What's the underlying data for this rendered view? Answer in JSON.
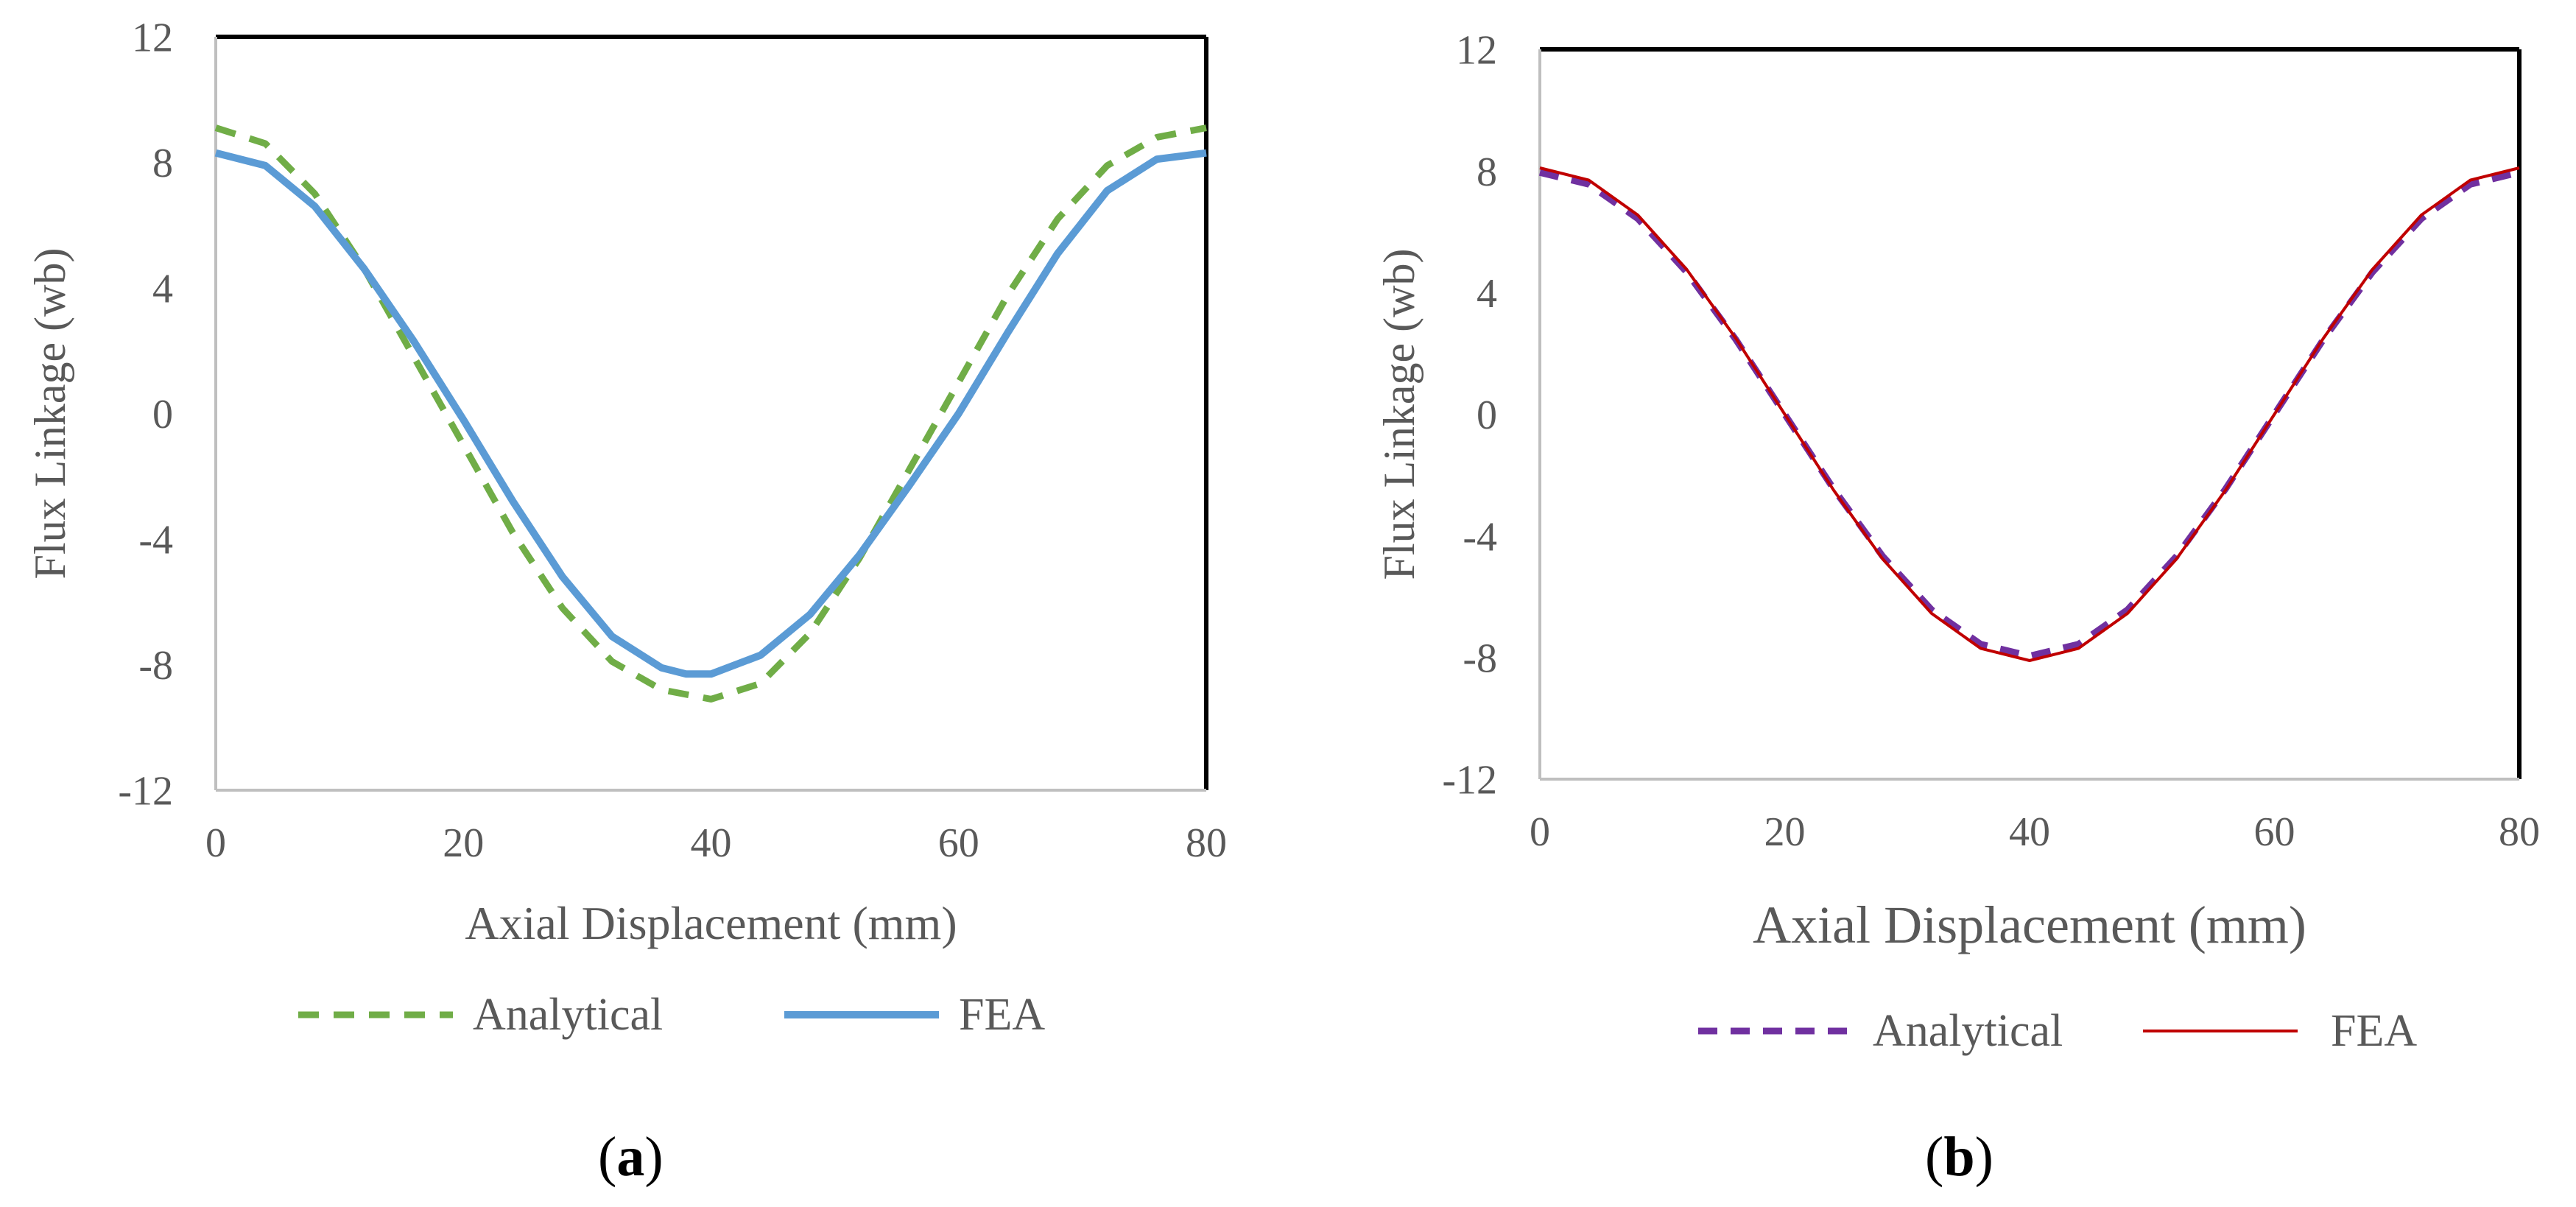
{
  "chart_data": [
    {
      "type": "line",
      "panel_label": "a",
      "xlabel": "Axial Displacement (mm)",
      "ylabel": "Flux Linkage (wb)",
      "xlim": [
        0,
        80
      ],
      "ylim": [
        -12,
        12
      ],
      "xticks": [
        0,
        20,
        40,
        60,
        80
      ],
      "yticks": [
        -12,
        -8,
        -4,
        0,
        4,
        8,
        12
      ],
      "legend_position": "bottom",
      "series": [
        {
          "name": "Analytical",
          "style": "dashed",
          "color": "#70ad47",
          "points": [
            [
              0,
              9.1
            ],
            [
              4,
              8.6
            ],
            [
              8,
              7.0
            ],
            [
              12,
              4.6
            ],
            [
              16,
              1.8
            ],
            [
              20,
              -1.0
            ],
            [
              24,
              -3.8
            ],
            [
              28,
              -6.2
            ],
            [
              32,
              -7.9
            ],
            [
              36,
              -8.8
            ],
            [
              40,
              -9.1
            ],
            [
              44,
              -8.6
            ],
            [
              48,
              -7.0
            ],
            [
              52,
              -4.6
            ],
            [
              56,
              -1.8
            ],
            [
              60,
              1.0
            ],
            [
              64,
              3.8
            ],
            [
              68,
              6.2
            ],
            [
              72,
              7.9
            ],
            [
              76,
              8.8
            ],
            [
              80,
              9.1
            ]
          ]
        },
        {
          "name": "FEA",
          "style": "solid",
          "color": "#5b9bd5",
          "points": [
            [
              0,
              8.3
            ],
            [
              4,
              7.9
            ],
            [
              8,
              6.6
            ],
            [
              12,
              4.6
            ],
            [
              16,
              2.3
            ],
            [
              20,
              -0.2
            ],
            [
              24,
              -2.8
            ],
            [
              28,
              -5.2
            ],
            [
              32,
              -7.1
            ],
            [
              36,
              -8.1
            ],
            [
              38,
              -8.3
            ],
            [
              40,
              -8.3
            ],
            [
              44,
              -7.7
            ],
            [
              48,
              -6.4
            ],
            [
              52,
              -4.5
            ],
            [
              56,
              -2.3
            ],
            [
              60,
              0.0
            ],
            [
              64,
              2.6
            ],
            [
              68,
              5.1
            ],
            [
              72,
              7.1
            ],
            [
              76,
              8.1
            ],
            [
              80,
              8.3
            ]
          ]
        }
      ]
    },
    {
      "type": "line",
      "panel_label": "b",
      "xlabel": "Axial Displacement (mm)",
      "ylabel": "Flux Linkage (wb)",
      "xlim": [
        0,
        80
      ],
      "ylim": [
        -12,
        12
      ],
      "xticks": [
        0,
        20,
        40,
        60,
        80
      ],
      "yticks": [
        -12,
        -8,
        -4,
        0,
        4,
        8,
        12
      ],
      "legend_position": "bottom",
      "series": [
        {
          "name": "Analytical",
          "style": "dashed",
          "color": "#7030a0",
          "points": [
            [
              0,
              7.95
            ],
            [
              4,
              7.56
            ],
            [
              8,
              6.43
            ],
            [
              12,
              4.67
            ],
            [
              16,
              2.46
            ],
            [
              20,
              0.0
            ],
            [
              24,
              -2.46
            ],
            [
              28,
              -4.67
            ],
            [
              32,
              -6.43
            ],
            [
              36,
              -7.56
            ],
            [
              40,
              -7.95
            ],
            [
              44,
              -7.56
            ],
            [
              48,
              -6.43
            ],
            [
              52,
              -4.67
            ],
            [
              56,
              -2.46
            ],
            [
              60,
              0.0
            ],
            [
              64,
              2.46
            ],
            [
              68,
              4.67
            ],
            [
              72,
              6.43
            ],
            [
              76,
              7.56
            ],
            [
              80,
              7.95
            ]
          ]
        },
        {
          "name": "FEA",
          "style": "solid",
          "color": "#c00000",
          "points": [
            [
              0,
              8.1
            ],
            [
              4,
              7.7
            ],
            [
              8,
              6.55
            ],
            [
              12,
              4.76
            ],
            [
              16,
              2.5
            ],
            [
              20,
              0.0
            ],
            [
              24,
              -2.5
            ],
            [
              28,
              -4.76
            ],
            [
              32,
              -6.55
            ],
            [
              36,
              -7.7
            ],
            [
              40,
              -8.1
            ],
            [
              44,
              -7.7
            ],
            [
              48,
              -6.55
            ],
            [
              52,
              -4.76
            ],
            [
              56,
              -2.5
            ],
            [
              60,
              0.0
            ],
            [
              64,
              2.5
            ],
            [
              68,
              4.76
            ],
            [
              72,
              6.55
            ],
            [
              76,
              7.7
            ],
            [
              80,
              8.1
            ]
          ]
        }
      ]
    }
  ]
}
